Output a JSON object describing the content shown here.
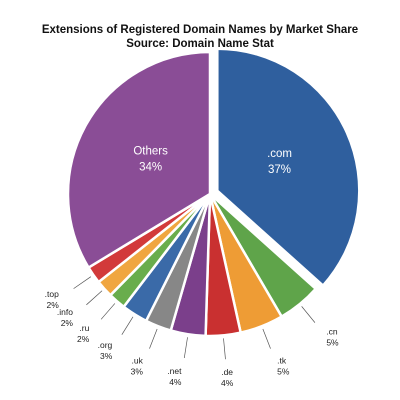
{
  "chart_data": {
    "type": "pie",
    "title": "Extensions of Registered Domain Names by Market Share",
    "subtitle": "Source: Domain Name Stat",
    "slices": [
      {
        "label": ".com",
        "value": 37,
        "value_label": "37%",
        "color": "#2f5f9e",
        "label_position": "inside"
      },
      {
        "label": ".cn",
        "value": 5,
        "value_label": "5%",
        "color": "#5fa44a",
        "label_position": "outside"
      },
      {
        "label": ".tk",
        "value": 5,
        "value_label": "5%",
        "color": "#ee9c35",
        "label_position": "outside"
      },
      {
        "label": ".de",
        "value": 4,
        "value_label": "4%",
        "color": "#c93030",
        "label_position": "outside"
      },
      {
        "label": ".net",
        "value": 4,
        "value_label": "4%",
        "color": "#7b3f8b",
        "label_position": "outside"
      },
      {
        "label": ".uk",
        "value": 3,
        "value_label": "3%",
        "color": "#878787",
        "label_position": "outside"
      },
      {
        "label": ".org",
        "value": 3,
        "value_label": "3%",
        "color": "#3a6aa8",
        "label_position": "outside"
      },
      {
        "label": ".ru",
        "value": 2,
        "value_label": "2%",
        "color": "#69ad4c",
        "label_position": "outside"
      },
      {
        "label": ".info",
        "value": 2,
        "value_label": "2%",
        "color": "#f0a640",
        "label_position": "outside"
      },
      {
        "label": ".top",
        "value": 2,
        "value_label": "2%",
        "color": "#d23a3a",
        "label_position": "outside"
      },
      {
        "label": "Others",
        "value": 34,
        "value_label": "34%",
        "color": "#8a4d96",
        "label_position": "inside"
      }
    ],
    "exploded": [
      ".com"
    ],
    "start_angle_deg": 0,
    "direction": "clockwise",
    "legend": "none"
  }
}
